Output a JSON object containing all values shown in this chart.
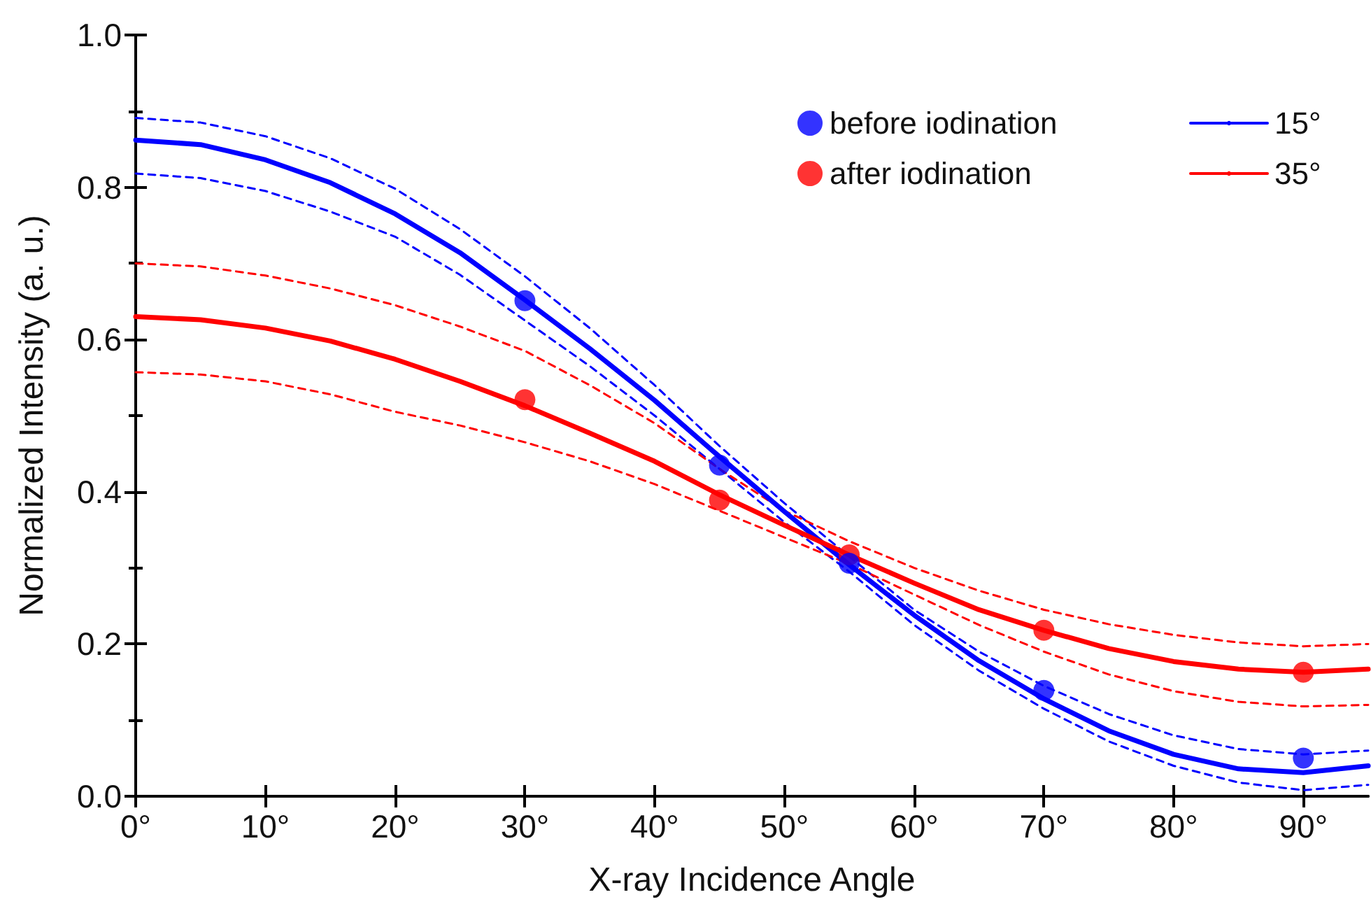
{
  "chart_data": {
    "type": "line",
    "xlabel": "X-ray Incidence Angle",
    "ylabel": "Normalized Intensity (a. u.)",
    "xlim": [
      0,
      95
    ],
    "ylim": [
      0,
      1
    ],
    "xticks": [
      {
        "value": 0,
        "label": "0°"
      },
      {
        "value": 10,
        "label": "10°"
      },
      {
        "value": 20,
        "label": "20°"
      },
      {
        "value": 30,
        "label": "30°"
      },
      {
        "value": 40,
        "label": "40°"
      },
      {
        "value": 50,
        "label": "50°"
      },
      {
        "value": 60,
        "label": "60°"
      },
      {
        "value": 70,
        "label": "70°"
      },
      {
        "value": 80,
        "label": "80°"
      },
      {
        "value": 90,
        "label": "90°"
      }
    ],
    "yticks": [
      {
        "value": 0,
        "label": "0.0"
      },
      0.2,
      0.4,
      0.6,
      0.8,
      {
        "value": 1,
        "label": "1.0"
      }
    ],
    "grid": false,
    "legend": "top right",
    "series": [
      {
        "name": "before iodination",
        "type": "scatter",
        "marker": "circle",
        "color": "#0000ff",
        "x": [
          30,
          45,
          55,
          70,
          90
        ],
        "values": [
          0.651,
          0.435,
          0.306,
          0.139,
          0.05
        ]
      },
      {
        "name": "after iodination",
        "type": "scatter",
        "marker": "circle",
        "color": "#ff0000",
        "x": [
          30,
          45,
          55,
          70,
          90
        ],
        "values": [
          0.521,
          0.389,
          0.317,
          0.218,
          0.163
        ]
      },
      {
        "name": "15°",
        "marker": "none",
        "line_style": "solid",
        "color": "#0000ff",
        "x": [
          0,
          5,
          10,
          15,
          20,
          25,
          30,
          35,
          40,
          45,
          50,
          55,
          60,
          65,
          70,
          75,
          80,
          85,
          90,
          95
        ],
        "values": [
          0.862,
          0.856,
          0.836,
          0.806,
          0.765,
          0.714,
          0.652,
          0.588,
          0.52,
          0.446,
          0.374,
          0.304,
          0.238,
          0.178,
          0.128,
          0.086,
          0.055,
          0.036,
          0.031,
          0.04
        ]
      },
      {
        "marker": "none",
        "line_style": "dashed",
        "color": "#0000ff",
        "x": [
          0,
          5,
          10,
          15,
          20,
          25,
          30,
          35,
          40,
          45,
          50,
          55,
          60,
          65,
          70,
          75,
          80,
          85,
          90,
          95
        ],
        "values": [
          0.891,
          0.885,
          0.867,
          0.838,
          0.798,
          0.745,
          0.683,
          0.615,
          0.54,
          0.46,
          0.385,
          0.315,
          0.245,
          0.19,
          0.145,
          0.108,
          0.08,
          0.062,
          0.055,
          0.06
        ]
      },
      {
        "marker": "none",
        "line_style": "dashed",
        "color": "#0000ff",
        "x": [
          0,
          5,
          10,
          15,
          20,
          25,
          30,
          35,
          40,
          45,
          50,
          55,
          60,
          65,
          70,
          75,
          80,
          85,
          90,
          95
        ],
        "values": [
          0.818,
          0.812,
          0.795,
          0.768,
          0.735,
          0.685,
          0.625,
          0.565,
          0.5,
          0.43,
          0.36,
          0.295,
          0.225,
          0.165,
          0.115,
          0.072,
          0.04,
          0.018,
          0.008,
          0.015
        ]
      },
      {
        "name": "35°",
        "marker": "none",
        "line_style": "solid",
        "color": "#ff0000",
        "x": [
          0,
          5,
          10,
          15,
          20,
          25,
          30,
          35,
          40,
          45,
          50,
          55,
          60,
          65,
          70,
          75,
          80,
          85,
          90,
          95
        ],
        "values": [
          0.63,
          0.626,
          0.615,
          0.598,
          0.574,
          0.545,
          0.513,
          0.477,
          0.44,
          0.396,
          0.356,
          0.317,
          0.28,
          0.245,
          0.218,
          0.194,
          0.177,
          0.167,
          0.163,
          0.167
        ]
      },
      {
        "marker": "none",
        "line_style": "dashed",
        "color": "#ff0000",
        "x": [
          0,
          5,
          10,
          15,
          20,
          25,
          30,
          35,
          40,
          45,
          50,
          55,
          60,
          65,
          70,
          75,
          80,
          85,
          90,
          95
        ],
        "values": [
          0.7,
          0.696,
          0.684,
          0.667,
          0.645,
          0.617,
          0.585,
          0.54,
          0.49,
          0.43,
          0.375,
          0.335,
          0.3,
          0.27,
          0.245,
          0.226,
          0.212,
          0.202,
          0.197,
          0.2
        ]
      },
      {
        "marker": "none",
        "line_style": "dashed",
        "color": "#ff0000",
        "x": [
          0,
          5,
          10,
          15,
          20,
          25,
          30,
          35,
          40,
          45,
          50,
          55,
          60,
          65,
          70,
          75,
          80,
          85,
          90,
          95
        ],
        "values": [
          0.557,
          0.554,
          0.545,
          0.528,
          0.505,
          0.487,
          0.465,
          0.44,
          0.41,
          0.375,
          0.34,
          0.305,
          0.265,
          0.225,
          0.19,
          0.16,
          0.138,
          0.124,
          0.118,
          0.12
        ]
      }
    ]
  }
}
